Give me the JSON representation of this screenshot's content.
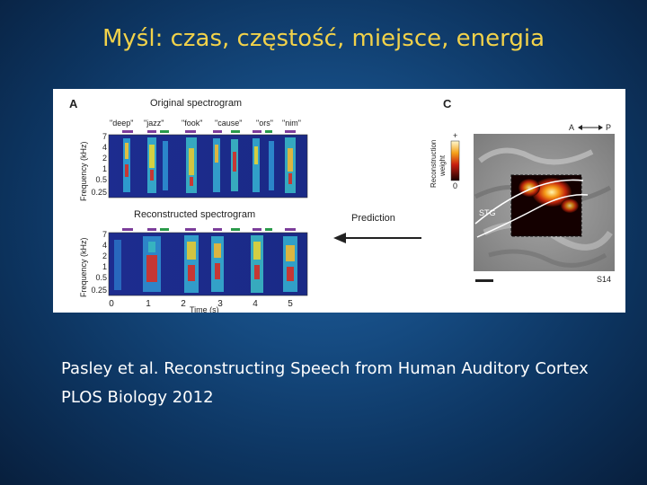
{
  "slide": {
    "title": "Myśl: czas, częstość, miejsce, energia"
  },
  "figure": {
    "panel_a": {
      "label": "A",
      "top_title": "Original spectrogram",
      "bottom_title": "Reconstructed spectrogram",
      "words": [
        "\"deep\"",
        "\"jazz\"",
        "\"fook\"",
        "\"cause\"",
        "\"ors\"",
        "\"nim\""
      ],
      "freq_ticks": [
        "7",
        "4",
        "2",
        "1",
        "0.5",
        "0.25"
      ],
      "y_label": "Frequency (kHz)",
      "time_ticks": [
        "0",
        "1",
        "2",
        "3",
        "4",
        "5"
      ],
      "x_label": "Time (s)",
      "prediction_label": "Prediction"
    },
    "panel_c": {
      "label": "C",
      "colorbar_top": "+",
      "colorbar_bottom": "0",
      "colorbar_label_1": "Reconstruction",
      "colorbar_label_2": "weight",
      "orient_a": "A",
      "orient_p": "P",
      "region": "STG",
      "subject": "S14"
    }
  },
  "caption": {
    "line1": "Pasley et al. Reconstructing Speech from Human Auditory Cortex",
    "line2": "PLOS Biology 2012"
  }
}
